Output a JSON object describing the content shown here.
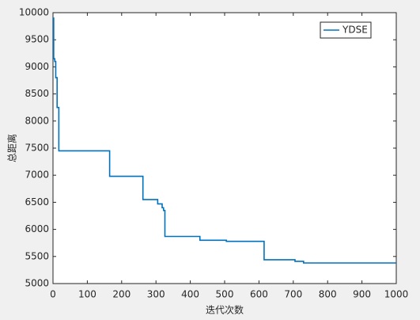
{
  "chart_data": {
    "type": "line",
    "xlabel": "迭代次数",
    "ylabel": "总距离",
    "x": [
      0,
      2,
      2,
      5,
      5,
      8,
      8,
      12,
      12,
      17,
      17,
      165,
      165,
      262,
      262,
      305,
      305,
      318,
      318,
      322,
      322,
      326,
      326,
      428,
      428,
      505,
      505,
      615,
      615,
      705,
      705,
      730,
      730,
      1000
    ],
    "series": [
      {
        "name": "YDSE",
        "color": "#0072bd",
        "values": [
          9900,
          9900,
          9150,
          9150,
          9100,
          9100,
          8800,
          8800,
          8250,
          8250,
          7450,
          7450,
          6980,
          6980,
          6550,
          6550,
          6470,
          6470,
          6400,
          6400,
          6350,
          6350,
          5870,
          5870,
          5800,
          5800,
          5780,
          5780,
          5440,
          5440,
          5410,
          5410,
          5380,
          5380
        ]
      }
    ],
    "xlim": [
      0,
      1000
    ],
    "ylim": [
      5000,
      10000
    ],
    "xticks": [
      0,
      100,
      200,
      300,
      400,
      500,
      600,
      700,
      800,
      900,
      1000
    ],
    "yticks": [
      5000,
      5500,
      6000,
      6500,
      7000,
      7500,
      8000,
      8500,
      9000,
      9500,
      10000
    ],
    "legend": "northeast"
  }
}
